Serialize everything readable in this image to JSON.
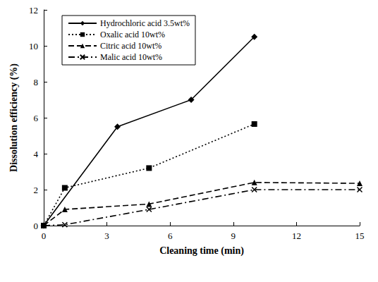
{
  "chart_data": {
    "type": "line",
    "x_label": "Cleaning time (min)",
    "y_label": "Dissolution efficiency (%)",
    "xlim": [
      0,
      15
    ],
    "xticks": [
      0,
      3,
      6,
      9,
      12,
      15
    ],
    "ylim": [
      0,
      12
    ],
    "yticks": [
      0,
      2,
      4,
      6,
      8,
      10,
      12
    ],
    "grid": false,
    "legend": "upper left",
    "series": [
      {
        "name": "Hydrochloric acid 3.5wt%",
        "color": "#000000",
        "marker": "diamond",
        "line_style": "solid",
        "x": [
          0,
          3.5,
          7,
          10
        ],
        "values": [
          0,
          5.5,
          7,
          10.5
        ]
      },
      {
        "name": "Oxalic acid 10wt%",
        "color": "#000000",
        "marker": "square",
        "line_style": "dotted",
        "x": [
          0,
          1,
          5,
          10
        ],
        "values": [
          0,
          2.1,
          3.2,
          5.65
        ]
      },
      {
        "name": "Citric acid 10wt%",
        "color": "#000000",
        "marker": "triangle",
        "line_style": "dashed",
        "x": [
          0,
          1,
          5,
          10,
          15
        ],
        "values": [
          0,
          0.9,
          1.2,
          2.4,
          2.35
        ]
      },
      {
        "name": "Malic acid 10wt%",
        "color": "#000000",
        "marker": "cross",
        "line_style": "dashdot",
        "x": [
          0,
          1,
          5,
          10,
          15
        ],
        "values": [
          0,
          0.05,
          0.9,
          2.0,
          2.0
        ]
      }
    ]
  }
}
